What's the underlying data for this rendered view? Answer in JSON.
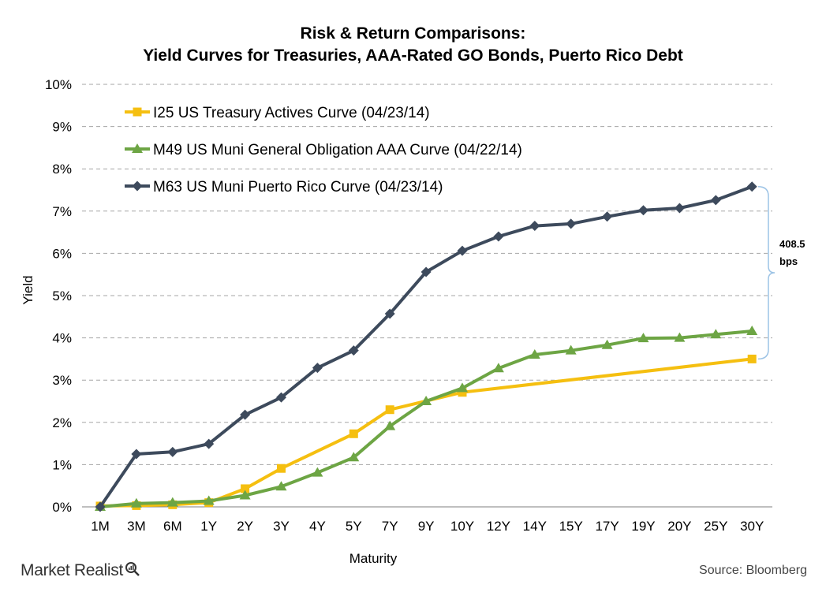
{
  "header": {
    "title_line1": "Risk & Return Comparisons:",
    "title_line2": "Yield Curves for Treasuries, AAA-Rated GO Bonds, Puerto Rico Debt"
  },
  "footer": {
    "brand": "Market Realist",
    "source": "Source: Bloomberg"
  },
  "colors": {
    "treasury": "#F5BF10",
    "muni_aaa": "#6DA544",
    "puerto_rico": "#3D4A5C",
    "bracket": "#9CC3E5",
    "grid": "#A6A6A6"
  },
  "chart_data": {
    "type": "line",
    "xlabel": "Maturity",
    "ylabel": "Yield",
    "ylim": [
      0,
      10
    ],
    "y_ticks": [
      "0%",
      "1%",
      "2%",
      "3%",
      "4%",
      "5%",
      "6%",
      "7%",
      "8%",
      "9%",
      "10%"
    ],
    "categories": [
      "1M",
      "3M",
      "6M",
      "1Y",
      "2Y",
      "3Y",
      "4Y",
      "5Y",
      "7Y",
      "9Y",
      "10Y",
      "12Y",
      "14Y",
      "15Y",
      "17Y",
      "19Y",
      "20Y",
      "25Y",
      "30Y"
    ],
    "grid": "horizontal dashed",
    "legend_position": "top-left",
    "series": [
      {
        "name": "I25 US Treasury Actives Curve (04/23/14)",
        "marker": "square",
        "color_key": "treasury",
        "points": [
          {
            "x": "1M",
            "y": 0.02
          },
          {
            "x": "3M",
            "y": 0.03
          },
          {
            "x": "6M",
            "y": 0.05
          },
          {
            "x": "1Y",
            "y": 0.1
          },
          {
            "x": "2Y",
            "y": 0.43
          },
          {
            "x": "3Y",
            "y": 0.91
          },
          {
            "x": "5Y",
            "y": 1.73
          },
          {
            "x": "7Y",
            "y": 2.3
          },
          {
            "x": "10Y",
            "y": 2.71
          },
          {
            "x": "30Y",
            "y": 3.5
          }
        ]
      },
      {
        "name": "M49 US Muni General Obligation AAA Curve (04/22/14)",
        "marker": "triangle",
        "color_key": "muni_aaa",
        "points": [
          {
            "x": "1M",
            "y": 0.0
          },
          {
            "x": "3M",
            "y": 0.08
          },
          {
            "x": "6M",
            "y": 0.1
          },
          {
            "x": "1Y",
            "y": 0.14
          },
          {
            "x": "2Y",
            "y": 0.27
          },
          {
            "x": "3Y",
            "y": 0.48
          },
          {
            "x": "4Y",
            "y": 0.81
          },
          {
            "x": "5Y",
            "y": 1.17
          },
          {
            "x": "7Y",
            "y": 1.91
          },
          {
            "x": "9Y",
            "y": 2.5
          },
          {
            "x": "10Y",
            "y": 2.81
          },
          {
            "x": "12Y",
            "y": 3.28
          },
          {
            "x": "14Y",
            "y": 3.6
          },
          {
            "x": "15Y",
            "y": 3.7
          },
          {
            "x": "17Y",
            "y": 3.83
          },
          {
            "x": "19Y",
            "y": 3.99
          },
          {
            "x": "20Y",
            "y": 4.0
          },
          {
            "x": "25Y",
            "y": 4.08
          },
          {
            "x": "30Y",
            "y": 4.16
          }
        ]
      },
      {
        "name": "M63 US Muni Puerto Rico Curve (04/23/14)",
        "marker": "diamond",
        "color_key": "puerto_rico",
        "points": [
          {
            "x": "1M",
            "y": 0.0
          },
          {
            "x": "3M",
            "y": 1.25
          },
          {
            "x": "6M",
            "y": 1.3
          },
          {
            "x": "1Y",
            "y": 1.49
          },
          {
            "x": "2Y",
            "y": 2.18
          },
          {
            "x": "3Y",
            "y": 2.59
          },
          {
            "x": "4Y",
            "y": 3.29
          },
          {
            "x": "5Y",
            "y": 3.7
          },
          {
            "x": "7Y",
            "y": 4.57
          },
          {
            "x": "9Y",
            "y": 5.56
          },
          {
            "x": "10Y",
            "y": 6.06
          },
          {
            "x": "12Y",
            "y": 6.4
          },
          {
            "x": "14Y",
            "y": 6.65
          },
          {
            "x": "15Y",
            "y": 6.7
          },
          {
            "x": "17Y",
            "y": 6.87
          },
          {
            "x": "19Y",
            "y": 7.02
          },
          {
            "x": "20Y",
            "y": 7.07
          },
          {
            "x": "25Y",
            "y": 7.26
          },
          {
            "x": "30Y",
            "y": 7.58
          }
        ]
      }
    ],
    "annotations": [
      {
        "label_line1": "408.5",
        "label_line2": "bps",
        "at_x": "30Y",
        "from_y": 3.5,
        "to_y": 7.58,
        "kind": "bracket"
      }
    ]
  }
}
